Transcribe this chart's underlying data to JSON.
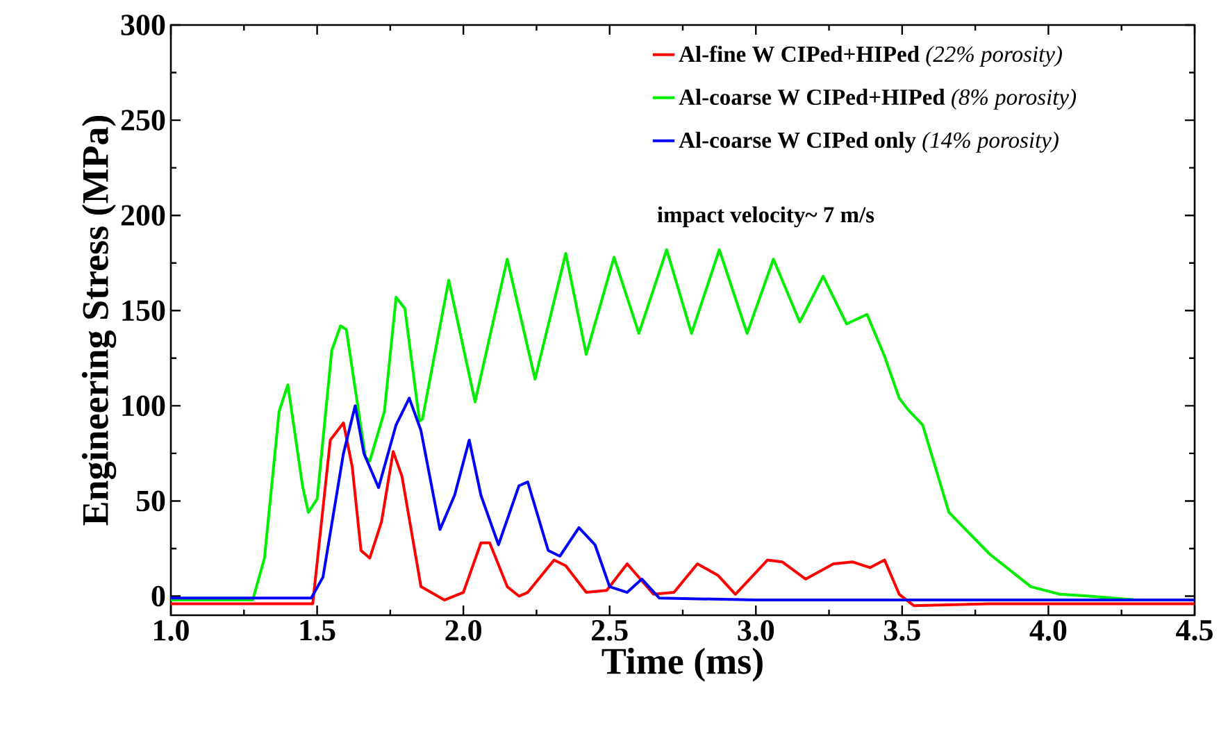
{
  "chart_data": {
    "type": "line",
    "xlabel": "Time (ms)",
    "ylabel": "Engineering Stress (MPa)",
    "xlim": [
      1.0,
      4.5
    ],
    "ylim": [
      -10,
      300
    ],
    "xticks": [
      {
        "value": 1.0,
        "label": "1.0"
      },
      {
        "value": 1.5,
        "label": "1.5"
      },
      {
        "value": 2.0,
        "label": "2.0"
      },
      {
        "value": 2.5,
        "label": "2.5"
      },
      {
        "value": 3.0,
        "label": "3.0"
      },
      {
        "value": 3.5,
        "label": "3.5"
      },
      {
        "value": 4.0,
        "label": "4.0"
      },
      {
        "value": 4.5,
        "label": "4.5"
      }
    ],
    "yticks": [
      0,
      50,
      100,
      150,
      200,
      250,
      300
    ],
    "grid": false,
    "legend": "top right",
    "annotations": [
      "impact velocity~ 7 m/s"
    ],
    "series": [
      {
        "name": "**Al-fine W CIPed+HIPed** *(22% porosity)*",
        "color": "#ff0000",
        "x": [
          1.0,
          1.2,
          1.4,
          1.485,
          1.545,
          1.59,
          1.62,
          1.65,
          1.68,
          1.72,
          1.76,
          1.79,
          1.855,
          1.935,
          2.0,
          2.06,
          2.09,
          2.15,
          2.19,
          2.22,
          2.31,
          2.35,
          2.42,
          2.49,
          2.56,
          2.65,
          2.72,
          2.8,
          2.87,
          2.93,
          3.04,
          3.09,
          3.17,
          3.265,
          3.33,
          3.39,
          3.44,
          3.49,
          3.54,
          3.8,
          4.1,
          4.5
        ],
        "values": [
          -4,
          -4,
          -4,
          -4,
          82,
          91,
          68,
          24,
          20,
          39,
          76,
          63,
          5,
          -2,
          2,
          28,
          28,
          5,
          0,
          2,
          19,
          16,
          2,
          3,
          17,
          1,
          2,
          17,
          11,
          1,
          19,
          18,
          9,
          17,
          18,
          15,
          19,
          1,
          -5,
          -4,
          -4,
          -4
        ]
      },
      {
        "name": "**Al-coarse W CIPed+HIPed** *(8% porosity)*",
        "color": "#00ee00",
        "x": [
          1.0,
          1.2,
          1.28,
          1.32,
          1.37,
          1.4,
          1.45,
          1.47,
          1.5,
          1.55,
          1.58,
          1.6,
          1.665,
          1.68,
          1.73,
          1.77,
          1.8,
          1.85,
          1.86,
          1.95,
          2.04,
          2.15,
          2.245,
          2.35,
          2.42,
          2.515,
          2.6,
          2.695,
          2.78,
          2.875,
          2.97,
          3.06,
          3.15,
          3.23,
          3.31,
          3.38,
          3.44,
          3.49,
          3.52,
          3.57,
          3.66,
          3.8,
          3.94,
          4.04,
          4.14,
          4.3
        ],
        "values": [
          -2,
          -2,
          -2,
          20,
          97,
          111,
          58,
          44,
          51,
          129,
          142,
          140,
          73,
          71,
          97,
          157,
          151,
          92,
          93,
          166,
          102,
          177,
          114,
          180,
          127,
          178,
          138,
          182,
          138,
          182,
          138,
          177,
          144,
          168,
          143,
          148,
          126,
          104,
          98,
          90,
          44,
          22,
          5,
          1,
          0,
          -2
        ]
      },
      {
        "name": "**Al-coarse W CIPed only** *(14% porosity)*",
        "color": "#0000ff",
        "x": [
          1.0,
          1.2,
          1.48,
          1.52,
          1.59,
          1.63,
          1.66,
          1.71,
          1.77,
          1.815,
          1.855,
          1.92,
          1.97,
          2.02,
          2.06,
          2.12,
          2.19,
          2.22,
          2.29,
          2.33,
          2.395,
          2.45,
          2.5,
          2.56,
          2.61,
          2.67,
          3.0,
          3.5,
          4.0,
          4.5
        ],
        "values": [
          -1,
          -1,
          -1,
          10,
          75,
          100,
          75,
          57,
          90,
          104,
          87,
          35,
          53,
          82,
          53,
          27,
          58,
          60,
          24,
          21,
          36,
          27,
          5,
          2,
          9,
          -1,
          -2,
          -2,
          -2,
          -2
        ]
      }
    ]
  }
}
